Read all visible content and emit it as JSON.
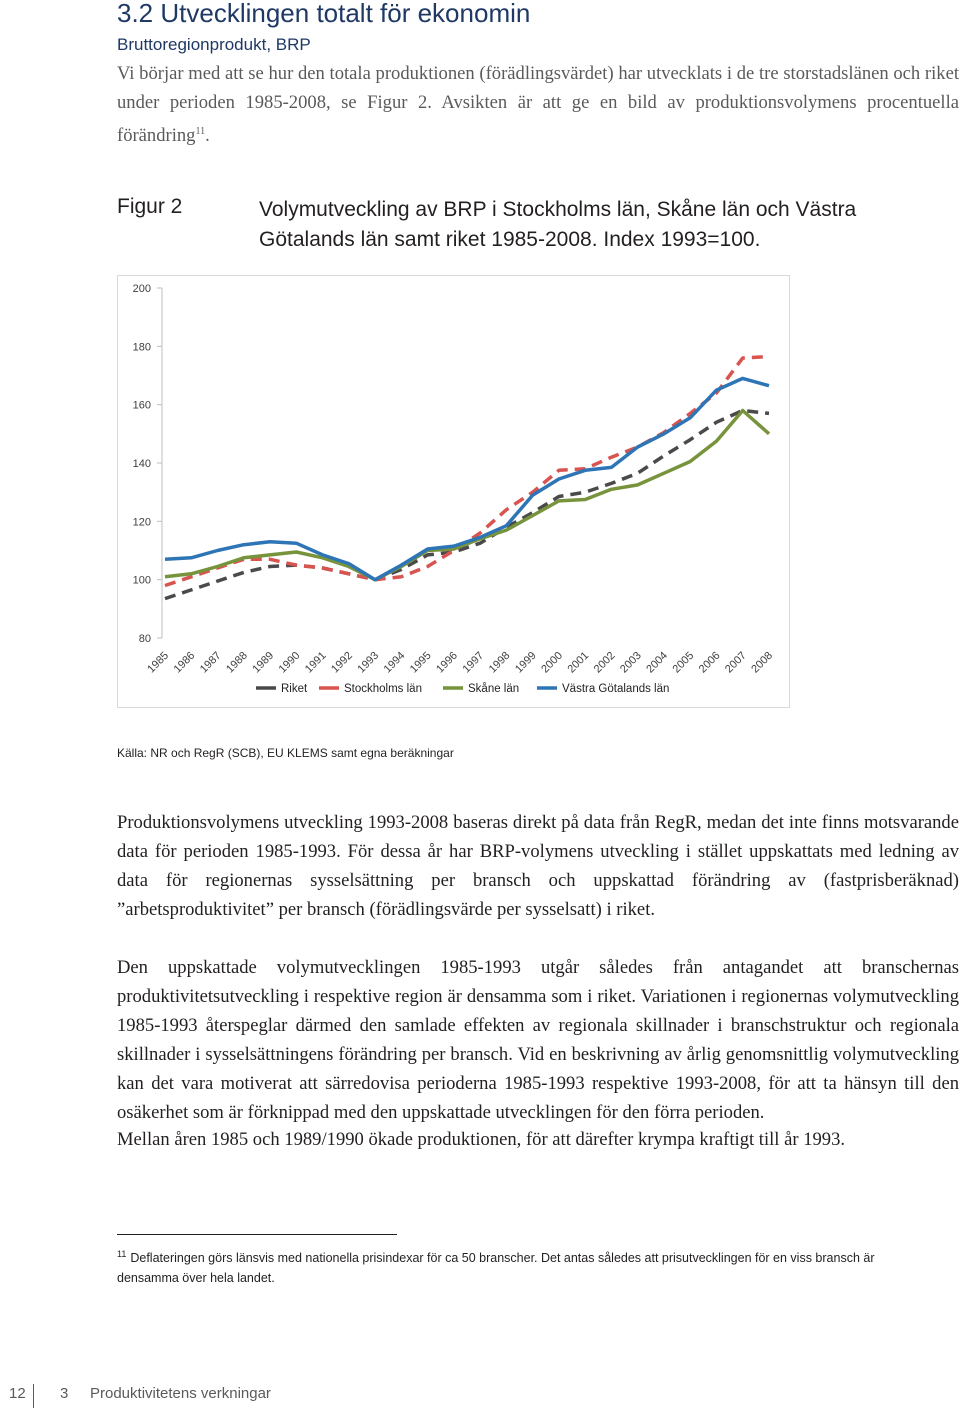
{
  "section": {
    "heading": "3.2 Utvecklingen totalt för ekonomin",
    "subtitle": "Bruttoregionprodukt, BRP",
    "intro": "Vi börjar med att se hur den totala produktionen (förädlingsvärdet) har utvecklats i de tre storstadslänen och riket under perioden 1985-2008, se Figur 2. Avsikten är att ge en bild av produktionsvolymens procentuella förändring",
    "intro_footnote_ref": "11",
    "intro_end": "."
  },
  "figure": {
    "label": "Figur 2",
    "caption": "Volymutveckling av BRP i Stockholms län, Skåne län och Västra Götalands län samt riket 1985-2008. Index 1993=100."
  },
  "chart_data": {
    "type": "line",
    "title": "",
    "xlabel": "",
    "ylabel": "",
    "x": [
      "1985",
      "1986",
      "1987",
      "1988",
      "1989",
      "1990",
      "1991",
      "1992",
      "1993",
      "1994",
      "1995",
      "1996",
      "1997",
      "1998",
      "1999",
      "2000",
      "2001",
      "2002",
      "2003",
      "2004",
      "2005",
      "2006",
      "2007",
      "2008"
    ],
    "ylim": [
      80,
      200
    ],
    "yticks": [
      80,
      100,
      120,
      140,
      160,
      180,
      200
    ],
    "grid": false,
    "legend_position": "bottom",
    "series": [
      {
        "name": "Riket",
        "color": "#4a4a4a",
        "dash": "dashed",
        "values": [
          93.5,
          96.5,
          99.5,
          102.5,
          104.5,
          105,
          104,
          102,
          100,
          103.5,
          108.5,
          109.5,
          112.5,
          118,
          123,
          128.5,
          130,
          133,
          136.5,
          142.5,
          148,
          154,
          158,
          157
        ]
      },
      {
        "name": "Stockholms län",
        "color": "#d9534f",
        "dash": "dashed",
        "values": [
          98,
          101,
          104,
          107,
          107,
          105,
          104,
          102,
          100,
          101,
          104.5,
          110,
          116,
          124,
          130,
          137.5,
          138,
          142,
          145.5,
          150.5,
          157,
          164,
          176,
          176.5
        ]
      },
      {
        "name": "Skåne län",
        "color": "#77933c",
        "dash": "solid",
        "values": [
          101,
          102,
          104.5,
          107.5,
          108.5,
          109.5,
          107.5,
          104.5,
          100,
          104.5,
          110,
          110.5,
          114,
          117,
          122,
          127,
          127.5,
          131,
          132.5,
          136.5,
          140.5,
          147.5,
          158,
          150
        ]
      },
      {
        "name": "Västra Götalands län",
        "color": "#2e75b6",
        "dash": "solid",
        "values": [
          107,
          107.5,
          110,
          112,
          113,
          112.5,
          108.5,
          105.5,
          100,
          105,
          110.5,
          111.5,
          114.5,
          118.5,
          129,
          134.5,
          137.5,
          138.5,
          145.5,
          150,
          155.5,
          165,
          169,
          166.5
        ]
      }
    ]
  },
  "source_note": "Källa: NR och RegR (SCB), EU KLEMS samt egna beräkningar",
  "paragraphs": [
    "Produktionsvolymens utveckling 1993-2008 baseras direkt på data från RegR, medan det inte finns motsvarande data för perioden 1985-1993. För dessa år har BRP-volymens utveckling i stället uppskattats med ledning av data för regionernas sysselsättning per bransch och uppskattad förändring av (fastprisberäknad) ”arbetsproduktivitet” per bransch (förädlingsvärde per sysselsatt) i riket.",
    "Den uppskattade volymutvecklingen 1985-1993 utgår således från antagandet att branschernas produktivitetsutveckling i respektive region är densamma som i riket. Variationen i regionernas volymutveckling 1985-1993 återspeglar därmed den samlade effekten av regionala skillnader i branschstruktur och regionala skillnader i sysselsättningens förändring per bransch. Vid en beskrivning av årlig genomsnittlig volymutveckling kan det vara motiverat att särredovisa perioderna 1985-1993 respektive 1993-2008, för att ta hänsyn till den osäkerhet som är förknippad med den uppskattade utvecklingen för den förra perioden.",
    "Mellan åren 1985 och 1989/1990 ökade produktionen, för att därefter krympa kraftigt till år 1993."
  ],
  "footnote": {
    "mark": "11",
    "text": "Deflateringen görs länsvis med nationella prisindexar för ca 50 branscher. Det antas således att prisutvecklingen för en viss bransch är densamma över hela landet."
  },
  "footer": {
    "page_number": "12",
    "chapter_number": "3",
    "chapter_title": "Produktivitetens verkningar"
  }
}
